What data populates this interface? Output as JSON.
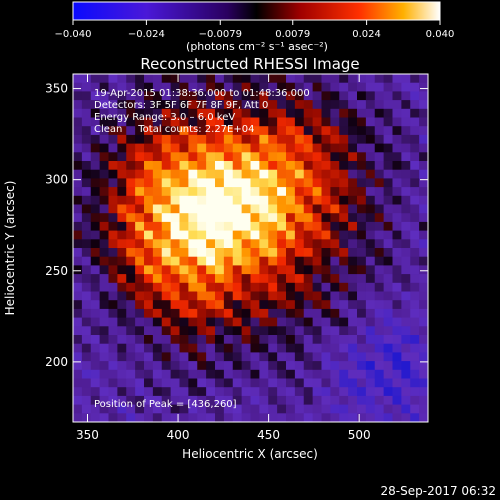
{
  "chart_data": {
    "type": "heatmap",
    "title": "Reconstructed RHESSI Image",
    "xlabel": "Heliocentric X (arcsec)",
    "ylabel": "Heliocentric Y (arcsec)",
    "xlim": [
      342,
      538
    ],
    "ylim": [
      167,
      358
    ],
    "x_ticks": [
      350,
      400,
      450,
      500
    ],
    "y_ticks": [
      200,
      250,
      300,
      350
    ],
    "colorbar": {
      "range": [
        -0.04,
        0.04
      ],
      "ticks": [
        -0.04,
        -0.024,
        -0.0079,
        0.0079,
        0.024,
        0.04
      ],
      "tick_labels": [
        "−0.040",
        "−0.024",
        "−0.0079",
        "0.0079",
        "0.024",
        "0.040"
      ],
      "unit_label": "(photons cm⁻² s⁻¹ asec⁻²)",
      "colormap": [
        "#1a12cc",
        "#6a30b8",
        "#000000",
        "#8a0000",
        "#ff2000",
        "#ff9a00",
        "#ffffff"
      ]
    },
    "annotations": [
      "19-Apr-2015 01:38:36.000 to 01:48:36.000",
      "Detectors: 3F 5F 6F 7F 8F 9F, Att 0",
      "Energy Range: 3.0 – 6.0 keV",
      "Clean     Total counts: 2.27E+04"
    ],
    "peak_label": "Position of Peak = [436,260]",
    "peak": [
      436,
      260
    ],
    "timestamp": "28-Sep-2017 06:32"
  }
}
